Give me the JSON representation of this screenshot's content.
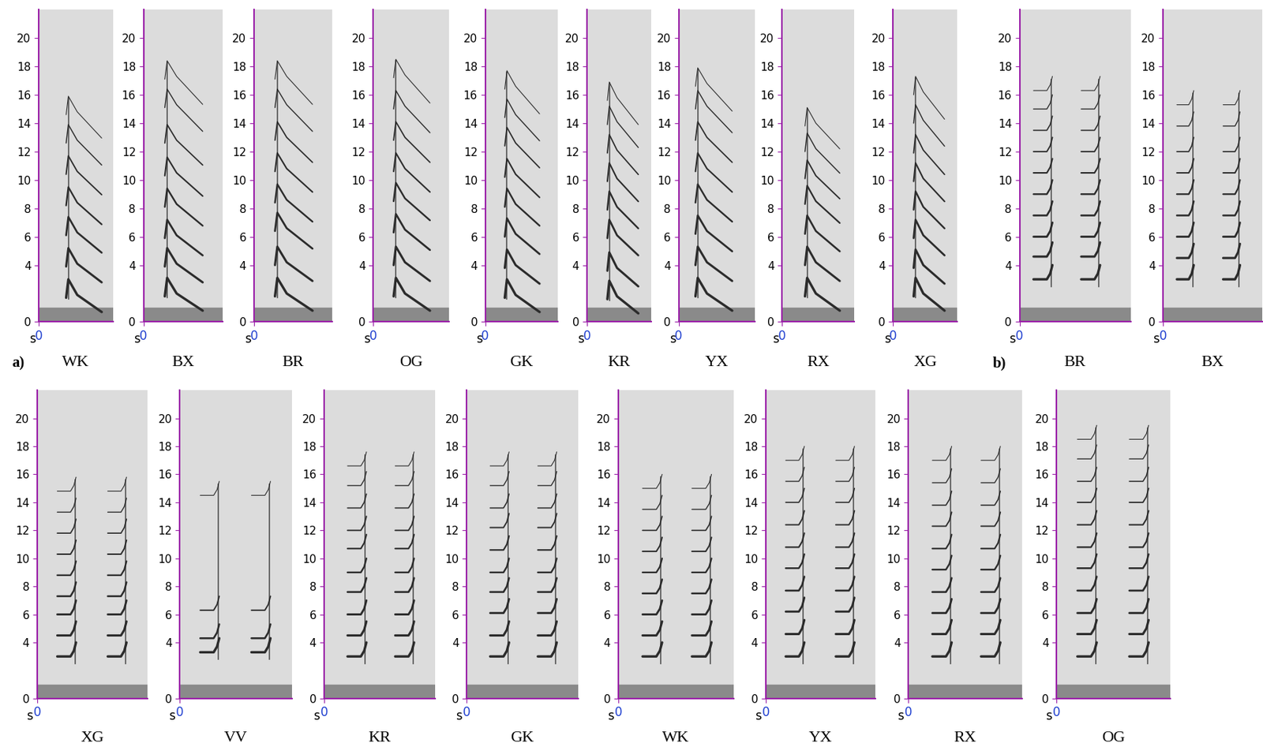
{
  "panel_labels": [
    "a)",
    "b)"
  ],
  "chart_data": [
    {
      "type": "spectrogram",
      "title": "WK",
      "xlabel": "s",
      "xlim": [
        0,
        0.2
      ],
      "xticks": [
        0
      ],
      "ylim": [
        0,
        22
      ],
      "yticks": [
        0,
        4,
        6,
        8,
        10,
        12,
        14,
        16,
        18,
        20
      ],
      "syllables": [
        0.08
      ],
      "harmonics": [
        2.1,
        4.3,
        6.5,
        8.6,
        10.8,
        13.0,
        15.0
      ]
    },
    {
      "type": "spectrogram",
      "title": "BX",
      "xlabel": "s",
      "xlim": [
        0,
        0.2
      ],
      "xticks": [
        0
      ],
      "ylim": [
        0,
        22
      ],
      "yticks": [
        0,
        4,
        6,
        8,
        10,
        12,
        14,
        16,
        18,
        20
      ],
      "syllables": [
        0.06
      ],
      "harmonics": [
        2.2,
        4.3,
        6.3,
        8.5,
        10.7,
        13.0,
        15.5,
        17.5
      ]
    },
    {
      "type": "spectrogram",
      "title": "BR",
      "xlabel": "s",
      "xlim": [
        0,
        0.2
      ],
      "xticks": [
        0
      ],
      "ylim": [
        0,
        22
      ],
      "yticks": [
        0,
        4,
        6,
        8,
        10,
        12,
        14,
        16,
        18,
        20
      ],
      "syllables": [
        0.06
      ],
      "harmonics": [
        2.2,
        4.4,
        6.8,
        8.8,
        11.0,
        13.2,
        15.5,
        17.5
      ]
    },
    {
      "type": "spectrogram",
      "title": "OG",
      "xlabel": "s",
      "xlim": [
        0,
        0.2
      ],
      "xticks": [
        0
      ],
      "ylim": [
        0,
        22
      ],
      "yticks": [
        0,
        4,
        6,
        8,
        10,
        12,
        14,
        16,
        18,
        20
      ],
      "syllables": [
        0.06
      ],
      "harmonics": [
        2.2,
        4.4,
        6.7,
        8.9,
        11.0,
        13.2,
        15.4,
        17.6
      ]
    },
    {
      "type": "spectrogram",
      "title": "GK",
      "xlabel": "s",
      "xlim": [
        0,
        0.2
      ],
      "xticks": [
        0
      ],
      "ylim": [
        0,
        22
      ],
      "yticks": [
        0,
        4,
        6,
        8,
        10,
        12,
        14,
        16,
        18,
        20
      ],
      "syllables": [
        0.06
      ],
      "harmonics": [
        2.1,
        4.2,
        6.4,
        8.5,
        10.6,
        12.8,
        14.8,
        16.8
      ]
    },
    {
      "type": "spectrogram",
      "title": "KR",
      "xlabel": "s",
      "xlim": [
        0,
        0.2
      ],
      "xticks": [
        0
      ],
      "ylim": [
        0,
        22
      ],
      "yticks": [
        0,
        4,
        6,
        8,
        10,
        12,
        14,
        16,
        18,
        20
      ],
      "syllables": [
        0.07
      ],
      "harmonics": [
        2.0,
        4.0,
        6.3,
        8.3,
        10.3,
        12.3,
        14.3,
        16.0
      ]
    },
    {
      "type": "spectrogram",
      "title": "YX",
      "xlabel": "s",
      "xlim": [
        0,
        0.2
      ],
      "xticks": [
        0
      ],
      "ylim": [
        0,
        22
      ],
      "yticks": [
        0,
        4,
        6,
        8,
        10,
        12,
        14,
        16,
        18,
        20
      ],
      "syllables": [
        0.05
      ],
      "harmonics": [
        2.2,
        4.4,
        6.6,
        8.8,
        11.0,
        13.2,
        15.4,
        17.0
      ]
    },
    {
      "type": "spectrogram",
      "title": "RX",
      "xlabel": "s",
      "xlim": [
        0,
        0.2
      ],
      "xticks": [
        0
      ],
      "ylim": [
        0,
        22
      ],
      "yticks": [
        0,
        4,
        6,
        8,
        10,
        12,
        14,
        16,
        18,
        20
      ],
      "syllables": [
        0.07
      ],
      "harmonics": [
        2.2,
        4.4,
        6.6,
        8.7,
        10.5,
        12.4,
        14.2
      ]
    },
    {
      "type": "spectrogram",
      "title": "XG",
      "xlabel": "s",
      "xlim": [
        0,
        0.2
      ],
      "xticks": [
        0
      ],
      "ylim": [
        0,
        22
      ],
      "yticks": [
        0,
        4,
        6,
        8,
        10,
        12,
        14,
        16,
        18,
        20
      ],
      "syllables": [
        0.07
      ],
      "harmonics": [
        2.2,
        4.2,
        6.3,
        8.3,
        10.3,
        12.3,
        14.4,
        16.4
      ]
    },
    {
      "type": "spectrogram",
      "title": "BR",
      "xlabel": "s",
      "xlim": [
        0,
        0.35
      ],
      "xticks": [
        0
      ],
      "ylim": [
        0,
        22
      ],
      "yticks": [
        0,
        4,
        6,
        8,
        10,
        12,
        14,
        16,
        18,
        20
      ],
      "syllables": [
        0.1,
        0.25
      ],
      "harmonics": [
        3.0,
        4.6,
        6.0,
        7.5,
        9.0,
        10.5,
        12.0,
        13.5,
        15.0,
        16.3
      ]
    },
    {
      "type": "spectrogram",
      "title": "BX",
      "xlabel": "s",
      "xlim": [
        0,
        0.3
      ],
      "xticks": [
        0
      ],
      "ylim": [
        0,
        22
      ],
      "yticks": [
        0,
        4,
        6,
        8,
        10,
        12,
        14,
        16,
        18,
        20
      ],
      "syllables": [
        0.09,
        0.23
      ],
      "harmonics": [
        3.0,
        4.5,
        6.0,
        7.5,
        9.0,
        10.5,
        12.0,
        13.8,
        15.3
      ]
    },
    {
      "type": "spectrogram",
      "title": "XG",
      "xlabel": "s",
      "xlim": [
        0,
        0.35
      ],
      "xticks": [
        0
      ],
      "ylim": [
        0,
        22
      ],
      "yticks": [
        0,
        4,
        6,
        8,
        10,
        12,
        14,
        16,
        18,
        20
      ],
      "syllables": [
        0.12,
        0.28
      ],
      "harmonics": [
        3.0,
        4.5,
        6.0,
        7.3,
        8.8,
        10.3,
        11.8,
        13.3,
        14.8
      ]
    },
    {
      "type": "spectrogram",
      "title": "VV",
      "xlabel": "s",
      "xlim": [
        0,
        0.35
      ],
      "xticks": [
        0
      ],
      "ylim": [
        0,
        22
      ],
      "yticks": [
        0,
        4,
        6,
        8,
        10,
        12,
        14,
        16,
        18,
        20
      ],
      "syllables": [
        0.12,
        0.28
      ],
      "harmonics": [
        3.3,
        4.3,
        6.3,
        14.5
      ]
    },
    {
      "type": "spectrogram",
      "title": "KR",
      "xlabel": "s",
      "xlim": [
        0,
        0.35
      ],
      "xticks": [
        0
      ],
      "ylim": [
        0,
        22
      ],
      "yticks": [
        0,
        4,
        6,
        8,
        10,
        12,
        14,
        16,
        18,
        20
      ],
      "syllables": [
        0.13,
        0.28
      ],
      "harmonics": [
        3.0,
        4.5,
        6.0,
        7.6,
        9.0,
        10.7,
        12.0,
        13.6,
        15.2,
        16.6
      ]
    },
    {
      "type": "spectrogram",
      "title": "GK",
      "xlabel": "s",
      "xlim": [
        0,
        0.35
      ],
      "xticks": [
        0
      ],
      "ylim": [
        0,
        22
      ],
      "yticks": [
        0,
        4,
        6,
        8,
        10,
        12,
        14,
        16,
        18,
        20
      ],
      "syllables": [
        0.13,
        0.28
      ],
      "harmonics": [
        3.0,
        4.5,
        6.1,
        7.6,
        9.0,
        10.6,
        12.2,
        13.6,
        15.2,
        16.6
      ]
    },
    {
      "type": "spectrogram",
      "title": "WK",
      "xlabel": "s",
      "xlim": [
        0,
        0.35
      ],
      "xticks": [
        0
      ],
      "ylim": [
        0,
        22
      ],
      "yticks": [
        0,
        4,
        6,
        8,
        10,
        12,
        14,
        16,
        18,
        20
      ],
      "syllables": [
        0.13,
        0.28
      ],
      "harmonics": [
        3.0,
        4.5,
        6.0,
        7.5,
        9.0,
        10.5,
        12.0,
        13.5,
        15.0
      ]
    },
    {
      "type": "spectrogram",
      "title": "YX",
      "xlabel": "s",
      "xlim": [
        0,
        0.35
      ],
      "xticks": [
        0
      ],
      "ylim": [
        0,
        22
      ],
      "yticks": [
        0,
        4,
        6,
        8,
        10,
        12,
        14,
        16,
        18,
        20
      ],
      "syllables": [
        0.12,
        0.28
      ],
      "harmonics": [
        3.0,
        4.6,
        6.2,
        7.7,
        9.3,
        10.8,
        12.4,
        14.0,
        15.5,
        17.0
      ]
    },
    {
      "type": "spectrogram",
      "title": "RX",
      "xlabel": "s",
      "xlim": [
        0,
        0.35
      ],
      "xticks": [
        0
      ],
      "ylim": [
        0,
        22
      ],
      "yticks": [
        0,
        4,
        6,
        8,
        10,
        12,
        14,
        16,
        18,
        20
      ],
      "syllables": [
        0.13,
        0.28
      ],
      "harmonics": [
        3.0,
        4.6,
        6.1,
        7.6,
        9.2,
        10.7,
        12.3,
        13.8,
        15.4,
        17.0
      ]
    },
    {
      "type": "spectrogram",
      "title": "OG",
      "xlabel": "s",
      "xlim": [
        0,
        0.35
      ],
      "xticks": [
        0
      ],
      "ylim": [
        0,
        22
      ],
      "yticks": [
        0,
        4,
        6,
        8,
        10,
        12,
        14,
        16,
        18,
        20
      ],
      "syllables": [
        0.12,
        0.28
      ],
      "harmonics": [
        3.0,
        4.6,
        6.1,
        7.7,
        9.3,
        10.8,
        12.4,
        14.0,
        15.5,
        17.1,
        18.5
      ]
    }
  ]
}
